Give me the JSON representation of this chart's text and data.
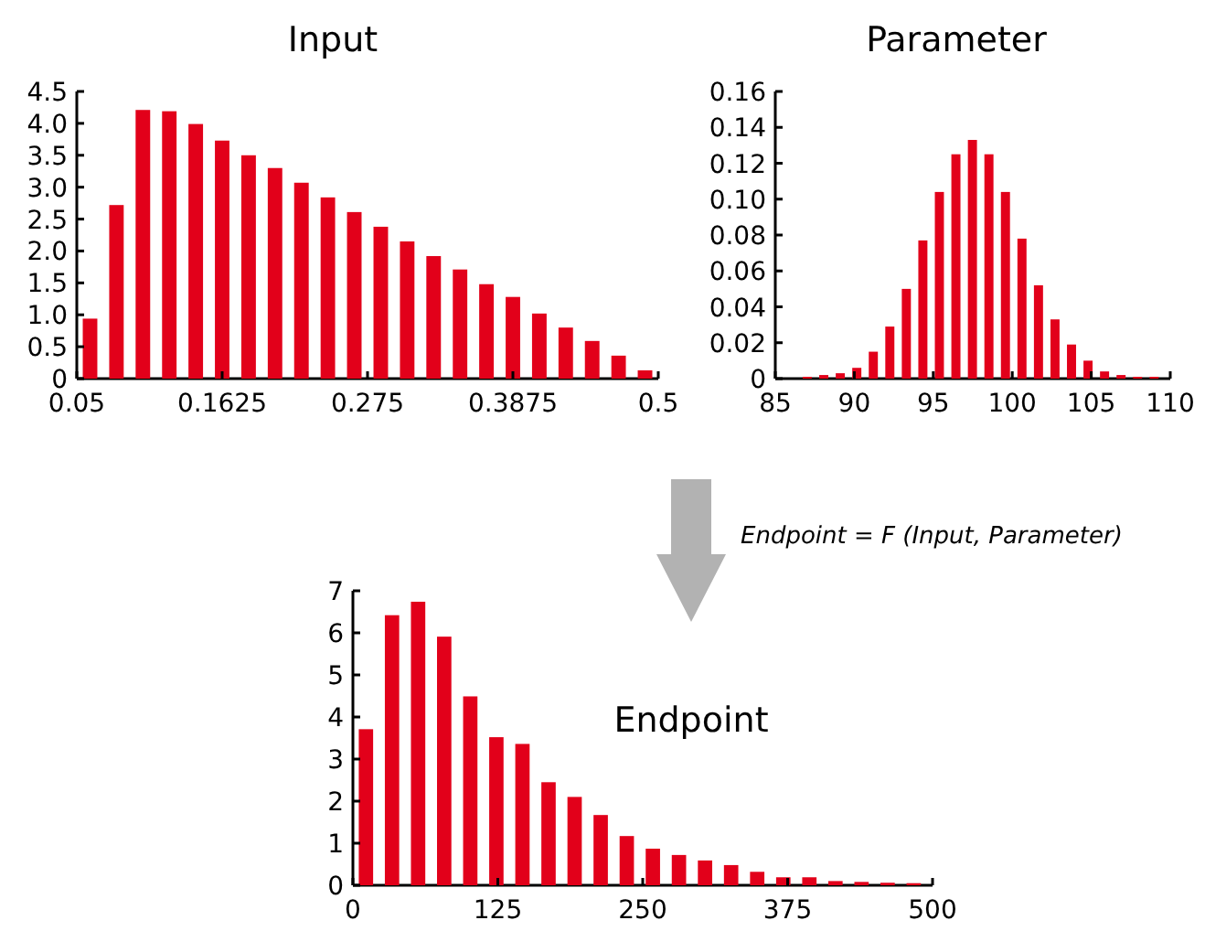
{
  "chart_data": [
    {
      "type": "histogram",
      "title": "Input",
      "color": "#e2001a",
      "bins": [
        0.05,
        0.0705,
        0.0909,
        0.1114,
        0.1318,
        0.1523,
        0.1727,
        0.1932,
        0.2136,
        0.2341,
        0.2545,
        0.275,
        0.2955,
        0.3159,
        0.3364,
        0.3568,
        0.3773,
        0.3977,
        0.4182,
        0.4386,
        0.4591,
        0.4795,
        0.5
      ],
      "values": [
        0.94,
        2.72,
        4.21,
        4.19,
        3.99,
        3.73,
        3.5,
        3.3,
        3.07,
        2.84,
        2.61,
        2.38,
        2.15,
        1.92,
        1.71,
        1.48,
        1.28,
        1.02,
        0.8,
        0.59,
        0.36,
        0.13
      ],
      "xlim": [
        0.05,
        0.5
      ],
      "xticks": [
        0.05,
        0.1625,
        0.275,
        0.3875,
        0.5
      ],
      "ylim": [
        0,
        4.5
      ],
      "yticks": [
        0,
        {
          "value": 0.5,
          "label": "0.5"
        },
        {
          "value": 1,
          "label": "1.0"
        },
        {
          "value": 1.5,
          "label": "1.5"
        },
        {
          "value": 2,
          "label": "2.0"
        },
        {
          "value": 2.5,
          "label": "2.5"
        },
        {
          "value": 3,
          "label": "3.0"
        },
        {
          "value": 3.5,
          "label": "3.5"
        },
        {
          "value": 4,
          "label": "4.0"
        },
        {
          "value": 4.5,
          "label": "4.5"
        }
      ],
      "grid": false
    },
    {
      "type": "histogram",
      "title": "Parameter",
      "color": "#e2001a",
      "bins": [
        86.5,
        87.545,
        88.591,
        89.636,
        90.682,
        91.727,
        92.773,
        93.818,
        94.864,
        95.909,
        96.955,
        98,
        99.045,
        100.091,
        101.136,
        102.182,
        103.227,
        104.273,
        105.318,
        106.364,
        107.409,
        108.455,
        109.5
      ],
      "values": [
        0.001,
        0.002,
        0.003,
        0.006,
        0.015,
        0.029,
        0.05,
        0.077,
        0.104,
        0.125,
        0.133,
        0.125,
        0.104,
        0.078,
        0.052,
        0.033,
        0.019,
        0.01,
        0.004,
        0.002,
        0.001,
        0.001
      ],
      "xlim": [
        85,
        110
      ],
      "xticks": [
        85,
        90,
        95,
        100,
        105,
        110
      ],
      "ylim": [
        0,
        0.16
      ],
      "yticks": [
        0,
        0.02,
        0.04,
        0.06,
        0.08,
        {
          "value": 0.1,
          "label": "0.10"
        },
        0.12,
        0.14,
        0.16
      ],
      "grid": false
    },
    {
      "type": "histogram",
      "title": "Endpoint",
      "color": "#e2001a",
      "bins": [
        0,
        22.5,
        45,
        67.5,
        90,
        112.5,
        135,
        157.5,
        180,
        202.5,
        225,
        247.5,
        270,
        292.5,
        315,
        337.5,
        360,
        382.5,
        405,
        427.5,
        450,
        472.5,
        495
      ],
      "values": [
        3.71,
        6.42,
        6.74,
        5.91,
        4.49,
        3.52,
        3.36,
        2.45,
        2.1,
        1.67,
        1.17,
        0.87,
        0.72,
        0.59,
        0.48,
        0.32,
        0.19,
        0.19,
        0.1,
        0.08,
        0.06,
        0.05
      ],
      "xlim": [
        0,
        500
      ],
      "xticks": [
        0,
        125,
        250,
        375,
        500
      ],
      "ylim": [
        0,
        7
      ],
      "yticks": [
        0,
        1,
        2,
        3,
        4,
        5,
        6,
        7
      ],
      "grid": false,
      "annotations": [
        "Endpoint = F (Input, Parameter)"
      ]
    }
  ]
}
